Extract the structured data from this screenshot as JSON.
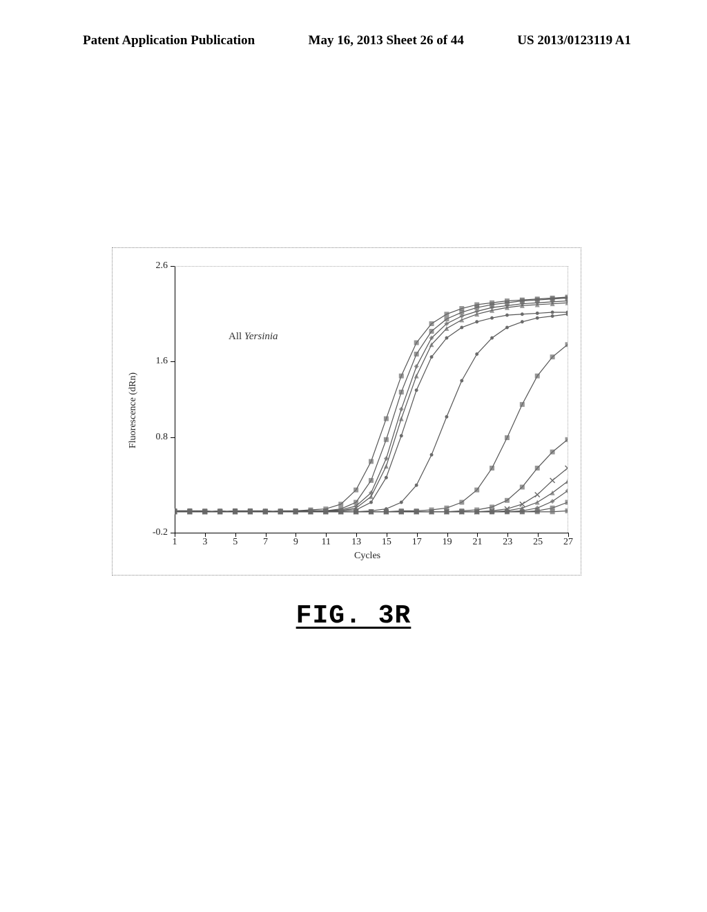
{
  "header": {
    "left": "Patent Application Publication",
    "center": "May 16, 2013  Sheet 26 of 44",
    "right": "US 2013/0123119 A1"
  },
  "figure_label": "FIG. 3R",
  "chart": {
    "type": "line",
    "x_label": "Cycles",
    "y_label": "Fluorescence (dRn)",
    "series_label_prefix": "All ",
    "series_label_italic": "Yersinia",
    "xlim": [
      1,
      27
    ],
    "ylim": [
      -0.2,
      2.6
    ],
    "x_ticks": [
      1,
      3,
      5,
      7,
      9,
      11,
      13,
      15,
      17,
      19,
      21,
      23,
      25,
      27
    ],
    "y_ticks": [
      -0.2,
      0.8,
      1.6,
      2.6
    ],
    "background_color": "#ffffff",
    "axis_color": "#000000",
    "border_color": "#888888",
    "tick_fontsize": 14,
    "label_fontsize": 14,
    "line_color": "#555555",
    "marker_color": "#6b6b6b",
    "marker_size": 7,
    "line_width": 1.2,
    "series": [
      {
        "marker": "square",
        "x": [
          1,
          2,
          3,
          4,
          5,
          6,
          7,
          8,
          9,
          10,
          11,
          12,
          13,
          14,
          15,
          16,
          17,
          18,
          19,
          20,
          21,
          22,
          23,
          24,
          25,
          26,
          27
        ],
        "y": [
          0.03,
          0.03,
          0.03,
          0.02,
          0.03,
          0.03,
          0.02,
          0.03,
          0.03,
          0.04,
          0.05,
          0.1,
          0.25,
          0.55,
          1.0,
          1.45,
          1.8,
          2.0,
          2.1,
          2.16,
          2.2,
          2.22,
          2.24,
          2.25,
          2.26,
          2.27,
          2.28
        ]
      },
      {
        "marker": "square",
        "x": [
          1,
          2,
          3,
          4,
          5,
          6,
          7,
          8,
          9,
          10,
          11,
          12,
          13,
          14,
          15,
          16,
          17,
          18,
          19,
          20,
          21,
          22,
          23,
          24,
          25,
          26,
          27
        ],
        "y": [
          0.03,
          0.03,
          0.02,
          0.03,
          0.02,
          0.03,
          0.03,
          0.02,
          0.03,
          0.03,
          0.03,
          0.05,
          0.12,
          0.35,
          0.78,
          1.28,
          1.68,
          1.92,
          2.05,
          2.12,
          2.17,
          2.2,
          2.22,
          2.24,
          2.25,
          2.26,
          2.27
        ]
      },
      {
        "marker": "diamond",
        "x": [
          1,
          2,
          3,
          4,
          5,
          6,
          7,
          8,
          9,
          10,
          11,
          12,
          13,
          14,
          15,
          16,
          17,
          18,
          19,
          20,
          21,
          22,
          23,
          24,
          25,
          26,
          27
        ],
        "y": [
          0.02,
          0.03,
          0.02,
          0.02,
          0.03,
          0.02,
          0.02,
          0.03,
          0.02,
          0.03,
          0.03,
          0.04,
          0.08,
          0.22,
          0.58,
          1.1,
          1.55,
          1.85,
          2.0,
          2.08,
          2.13,
          2.17,
          2.19,
          2.21,
          2.22,
          2.23,
          2.24
        ]
      },
      {
        "marker": "triangle",
        "x": [
          1,
          2,
          3,
          4,
          5,
          6,
          7,
          8,
          9,
          10,
          11,
          12,
          13,
          14,
          15,
          16,
          17,
          18,
          19,
          20,
          21,
          22,
          23,
          24,
          25,
          26,
          27
        ],
        "y": [
          0.02,
          0.02,
          0.02,
          0.03,
          0.02,
          0.02,
          0.03,
          0.02,
          0.02,
          0.02,
          0.03,
          0.03,
          0.06,
          0.18,
          0.5,
          1.0,
          1.45,
          1.78,
          1.95,
          2.04,
          2.1,
          2.14,
          2.17,
          2.19,
          2.2,
          2.21,
          2.22
        ]
      },
      {
        "marker": "dot",
        "x": [
          1,
          2,
          3,
          4,
          5,
          6,
          7,
          8,
          9,
          10,
          11,
          12,
          13,
          14,
          15,
          16,
          17,
          18,
          19,
          20,
          21,
          22,
          23,
          24,
          25,
          26,
          27
        ],
        "y": [
          0.02,
          0.02,
          0.02,
          0.02,
          0.02,
          0.02,
          0.02,
          0.02,
          0.02,
          0.02,
          0.02,
          0.03,
          0.04,
          0.12,
          0.38,
          0.82,
          1.3,
          1.65,
          1.85,
          1.96,
          2.02,
          2.06,
          2.09,
          2.1,
          2.11,
          2.12,
          2.12
        ]
      },
      {
        "marker": "dot",
        "x": [
          1,
          2,
          3,
          4,
          5,
          6,
          7,
          8,
          9,
          10,
          11,
          12,
          13,
          14,
          15,
          16,
          17,
          18,
          19,
          20,
          21,
          22,
          23,
          24,
          25,
          26,
          27
        ],
        "y": [
          0.02,
          0.02,
          0.02,
          0.02,
          0.02,
          0.02,
          0.02,
          0.02,
          0.02,
          0.02,
          0.02,
          0.02,
          0.02,
          0.03,
          0.05,
          0.12,
          0.3,
          0.62,
          1.02,
          1.4,
          1.68,
          1.85,
          1.96,
          2.02,
          2.06,
          2.08,
          2.1
        ]
      },
      {
        "marker": "square",
        "x": [
          1,
          2,
          3,
          4,
          5,
          6,
          7,
          8,
          9,
          10,
          11,
          12,
          13,
          14,
          15,
          16,
          17,
          18,
          19,
          20,
          21,
          22,
          23,
          24,
          25,
          26,
          27
        ],
        "y": [
          0.02,
          0.02,
          0.02,
          0.02,
          0.03,
          0.02,
          0.02,
          0.02,
          0.02,
          0.02,
          0.02,
          0.02,
          0.02,
          0.02,
          0.02,
          0.03,
          0.03,
          0.04,
          0.06,
          0.12,
          0.25,
          0.48,
          0.8,
          1.15,
          1.45,
          1.65,
          1.78
        ]
      },
      {
        "marker": "square",
        "x": [
          1,
          2,
          3,
          4,
          5,
          6,
          7,
          8,
          9,
          10,
          11,
          12,
          13,
          14,
          15,
          16,
          17,
          18,
          19,
          20,
          21,
          22,
          23,
          24,
          25,
          26,
          27
        ],
        "y": [
          0.02,
          0.02,
          0.02,
          0.02,
          0.02,
          0.02,
          0.02,
          0.02,
          0.02,
          0.02,
          0.02,
          0.02,
          0.02,
          0.02,
          0.02,
          0.02,
          0.02,
          0.02,
          0.02,
          0.03,
          0.04,
          0.07,
          0.14,
          0.28,
          0.48,
          0.65,
          0.78
        ]
      },
      {
        "marker": "x",
        "x": [
          1,
          2,
          3,
          4,
          5,
          6,
          7,
          8,
          9,
          10,
          11,
          12,
          13,
          14,
          15,
          16,
          17,
          18,
          19,
          20,
          21,
          22,
          23,
          24,
          25,
          26,
          27
        ],
        "y": [
          0.02,
          0.02,
          0.02,
          0.02,
          0.02,
          0.02,
          0.02,
          0.02,
          0.02,
          0.02,
          0.02,
          0.02,
          0.02,
          0.02,
          0.02,
          0.02,
          0.02,
          0.02,
          0.02,
          0.02,
          0.02,
          0.03,
          0.05,
          0.1,
          0.2,
          0.35,
          0.48
        ]
      },
      {
        "marker": "triangle",
        "x": [
          1,
          2,
          3,
          4,
          5,
          6,
          7,
          8,
          9,
          10,
          11,
          12,
          13,
          14,
          15,
          16,
          17,
          18,
          19,
          20,
          21,
          22,
          23,
          24,
          25,
          26,
          27
        ],
        "y": [
          0.02,
          0.02,
          0.02,
          0.02,
          0.02,
          0.02,
          0.02,
          0.02,
          0.02,
          0.02,
          0.02,
          0.02,
          0.02,
          0.02,
          0.02,
          0.02,
          0.02,
          0.02,
          0.02,
          0.02,
          0.02,
          0.02,
          0.03,
          0.06,
          0.12,
          0.22,
          0.34
        ]
      },
      {
        "marker": "diamond",
        "x": [
          1,
          2,
          3,
          4,
          5,
          6,
          7,
          8,
          9,
          10,
          11,
          12,
          13,
          14,
          15,
          16,
          17,
          18,
          19,
          20,
          21,
          22,
          23,
          24,
          25,
          26,
          27
        ],
        "y": [
          0.02,
          0.02,
          0.02,
          0.02,
          0.02,
          0.02,
          0.02,
          0.02,
          0.02,
          0.02,
          0.02,
          0.02,
          0.02,
          0.02,
          0.02,
          0.02,
          0.02,
          0.02,
          0.02,
          0.02,
          0.02,
          0.02,
          0.02,
          0.03,
          0.06,
          0.13,
          0.24
        ]
      },
      {
        "marker": "square",
        "x": [
          1,
          2,
          3,
          4,
          5,
          6,
          7,
          8,
          9,
          10,
          11,
          12,
          13,
          14,
          15,
          16,
          17,
          18,
          19,
          20,
          21,
          22,
          23,
          24,
          25,
          26,
          27
        ],
        "y": [
          0.02,
          0.02,
          0.02,
          0.02,
          0.02,
          0.02,
          0.02,
          0.02,
          0.02,
          0.02,
          0.02,
          0.02,
          0.02,
          0.02,
          0.02,
          0.02,
          0.02,
          0.02,
          0.02,
          0.02,
          0.02,
          0.02,
          0.02,
          0.02,
          0.03,
          0.06,
          0.12
        ]
      },
      {
        "marker": "square",
        "x": [
          1,
          2,
          3,
          4,
          5,
          6,
          7,
          8,
          9,
          10,
          11,
          12,
          13,
          14,
          15,
          16,
          17,
          18,
          19,
          20,
          21,
          22,
          23,
          24,
          25,
          26,
          27
        ],
        "y": [
          0.02,
          0.02,
          0.02,
          0.02,
          0.02,
          0.02,
          0.02,
          0.02,
          0.02,
          0.02,
          0.02,
          0.02,
          0.02,
          0.02,
          0.02,
          0.02,
          0.02,
          0.02,
          0.02,
          0.02,
          0.02,
          0.02,
          0.02,
          0.02,
          0.02,
          0.02,
          0.03
        ]
      }
    ]
  }
}
